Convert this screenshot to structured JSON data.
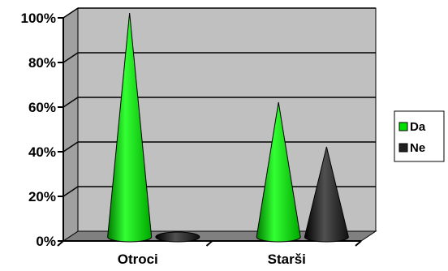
{
  "chart_data": {
    "type": "bar",
    "style": "3d-cone",
    "categories": [
      "Otroci",
      "Starši"
    ],
    "series": [
      {
        "name": "Da",
        "values": [
          100,
          60
        ],
        "color": "#00e000"
      },
      {
        "name": "Ne",
        "values": [
          0,
          40
        ],
        "color": "#202020"
      }
    ],
    "y_ticks": [
      "0%",
      "20%",
      "40%",
      "60%",
      "80%",
      "100%"
    ],
    "ylim": [
      0,
      100
    ],
    "y_unit": "%",
    "grid": true,
    "legend_position": "right",
    "colors": {
      "wall": "#c0c0c0",
      "floor": "#808080",
      "gridline": "#000000"
    }
  }
}
